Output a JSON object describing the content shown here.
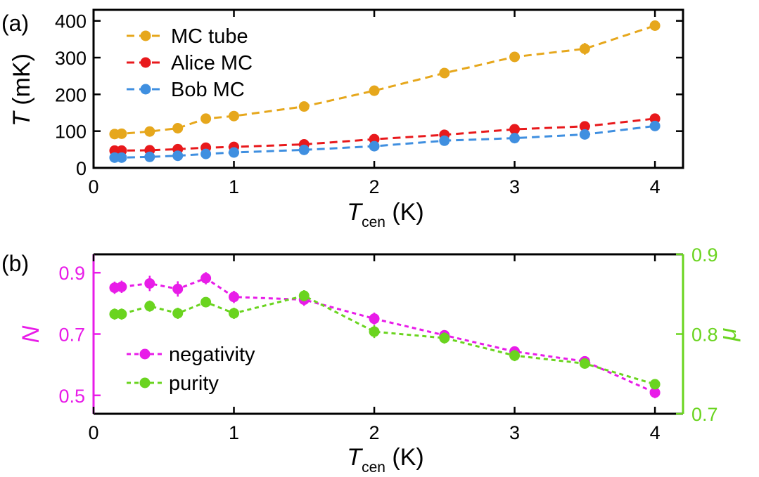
{
  "chart_data": [
    {
      "panel": "(a)",
      "type": "line",
      "xlabel": {
        "main": "T",
        "sub": "cen",
        "unit": " (K)"
      },
      "ylabel": {
        "main": "T",
        "unit": " (mK)"
      },
      "xlim": [
        0,
        4.2
      ],
      "ylim": [
        0,
        430
      ],
      "xticks": [
        0,
        1,
        2,
        3,
        4
      ],
      "yticks": [
        0,
        100,
        200,
        300,
        400
      ],
      "legend_position": "top-left",
      "series": [
        {
          "name": "MC tube",
          "color": "#e6a71c",
          "x": [
            0.15,
            0.2,
            0.4,
            0.6,
            0.8,
            1.0,
            1.5,
            2.0,
            2.5,
            3.0,
            3.5,
            4.0
          ],
          "y": [
            92,
            93,
            99,
            108,
            134,
            141,
            167,
            210,
            258,
            302,
            324,
            387
          ],
          "err": [
            5,
            5,
            6,
            6,
            7,
            6,
            7,
            14,
            8,
            8,
            16,
            8
          ]
        },
        {
          "name": "Alice MC",
          "color": "#e8191c",
          "x": [
            0.15,
            0.2,
            0.4,
            0.6,
            0.8,
            1.0,
            1.5,
            2.0,
            2.5,
            3.0,
            3.5,
            4.0
          ],
          "y": [
            47,
            47,
            48,
            51,
            55,
            57,
            64,
            78,
            90,
            105,
            113,
            134
          ],
          "err": [
            3,
            3,
            3,
            3,
            3,
            3,
            3,
            4,
            4,
            4,
            5,
            5
          ]
        },
        {
          "name": "Bob MC",
          "color": "#3f8fe0",
          "x": [
            0.15,
            0.2,
            0.4,
            0.6,
            0.8,
            1.0,
            1.5,
            2.0,
            2.5,
            3.0,
            3.5,
            4.0
          ],
          "y": [
            28,
            28,
            30,
            33,
            38,
            42,
            49,
            59,
            74,
            81,
            91,
            114
          ],
          "err": [
            3,
            3,
            3,
            3,
            3,
            3,
            3,
            3,
            3,
            3,
            4,
            4
          ]
        }
      ]
    },
    {
      "panel": "(b)",
      "type": "line",
      "xlabel": {
        "main": "T",
        "sub": "cen",
        "unit": " (K)"
      },
      "ylabel_left": {
        "main": "N",
        "color": "#e81ce8"
      },
      "ylabel_right": {
        "main": "μ",
        "color": "#6ad41f"
      },
      "xlim": [
        0,
        4.2
      ],
      "ylim_left": [
        0.44,
        0.96
      ],
      "ylim_right": [
        0.7,
        0.9
      ],
      "xticks": [
        0,
        1,
        2,
        3,
        4
      ],
      "yticks_left": [
        "0.5",
        "0.7",
        "0.9"
      ],
      "yticks_right": [
        "0.7",
        "0.8",
        "0.9"
      ],
      "legend_position": "bottom-left",
      "series": [
        {
          "name": "negativity",
          "color": "#e81ce8",
          "axis": "left",
          "x": [
            0.15,
            0.2,
            0.4,
            0.6,
            0.8,
            1.0,
            1.5,
            2.0,
            2.5,
            3.0,
            3.5,
            4.0
          ],
          "y": [
            0.851,
            0.854,
            0.865,
            0.847,
            0.882,
            0.821,
            0.812,
            0.75,
            0.696,
            0.643,
            0.611,
            0.509
          ],
          "err": [
            0.02,
            0.02,
            0.025,
            0.025,
            0.02,
            0.02,
            0.02,
            0.02,
            0.015,
            0.012,
            0.012,
            0.018
          ]
        },
        {
          "name": "purity",
          "color": "#6ad41f",
          "axis": "right",
          "x": [
            0.15,
            0.2,
            0.4,
            0.6,
            0.8,
            1.0,
            1.5,
            2.0,
            2.5,
            3.0,
            3.5,
            4.0
          ],
          "y": [
            0.825,
            0.825,
            0.835,
            0.826,
            0.84,
            0.826,
            0.848,
            0.803,
            0.795,
            0.773,
            0.763,
            0.737
          ],
          "err": [
            0.007,
            0.007,
            0.007,
            0.007,
            0.006,
            0.007,
            0.007,
            0.008,
            0.007,
            0.007,
            0.006,
            0.006
          ]
        }
      ]
    }
  ]
}
